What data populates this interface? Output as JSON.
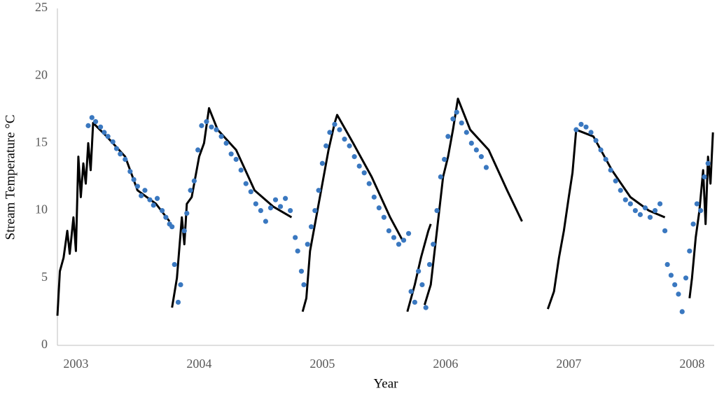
{
  "chart_data": {
    "type": "line",
    "x_label": "Year",
    "y_label": "Stream Temperature °C",
    "xlim": [
      2002.85,
      2008.18
    ],
    "xticks": [
      2003,
      2004,
      2005,
      2006,
      2007,
      2008
    ],
    "ylim": [
      0,
      25
    ],
    "yticks": [
      0,
      5,
      10,
      15,
      20,
      25
    ],
    "grid": false,
    "series": [
      {
        "type": "line",
        "color": "#000000",
        "x": [
          2002.85,
          2002.87,
          2002.9,
          2002.93,
          2002.95,
          2002.98,
          2003.0,
          2003.02,
          2003.04,
          2003.06,
          2003.08,
          2003.1,
          2003.12,
          2003.14,
          2003.25,
          2003.4,
          2003.5,
          2003.65,
          2003.76,
          null,
          2003.78,
          2003.82,
          2003.86,
          2003.88,
          2003.9,
          2003.94,
          2003.97,
          2004.0,
          2004.04,
          2004.08,
          2004.15,
          2004.3,
          2004.45,
          2004.6,
          2004.75,
          null,
          2004.84,
          2004.87,
          2004.9,
          2004.95,
          2005.0,
          2005.05,
          2005.1,
          2005.12,
          2005.25,
          2005.4,
          2005.55,
          2005.65,
          null,
          2005.69,
          2005.75,
          2005.8,
          2005.86,
          2005.88,
          null,
          2005.83,
          2005.88,
          2005.93,
          2005.98,
          2006.02,
          2006.06,
          2006.1,
          2006.2,
          2006.35,
          2006.5,
          2006.62,
          null,
          2006.83,
          2006.88,
          2006.92,
          2006.96,
          2007.0,
          2007.03,
          2007.06,
          2007.2,
          2007.35,
          2007.5,
          2007.65,
          2007.78,
          null,
          2007.98,
          2008.0,
          2008.03,
          2008.06,
          2008.09,
          2008.11,
          2008.13,
          2008.15,
          2008.17
        ],
        "values": [
          2.2,
          5.5,
          6.5,
          8.5,
          6.8,
          9.5,
          7,
          14,
          11,
          13.5,
          12,
          15,
          13,
          16.5,
          15.5,
          14,
          11.5,
          10.5,
          9.2,
          null,
          2.8,
          5,
          9.5,
          7.5,
          10.5,
          11,
          12.5,
          14,
          15,
          17.6,
          16,
          14.5,
          11.5,
          10.3,
          9.5,
          null,
          2.5,
          3.5,
          7,
          9.5,
          12,
          14.5,
          16.5,
          17.1,
          15,
          12.5,
          9.5,
          7.8,
          null,
          2.5,
          4.5,
          6.5,
          8.5,
          9,
          null,
          3,
          4.5,
          8.5,
          12.5,
          14,
          16,
          18.3,
          16,
          14.5,
          11.5,
          9.2,
          null,
          2.7,
          4,
          6.5,
          8.5,
          11,
          12.8,
          16,
          15.5,
          13,
          11,
          10,
          9.5,
          null,
          3.5,
          5,
          8,
          10,
          13,
          9,
          14,
          12,
          15.8
        ]
      },
      {
        "type": "scatter",
        "color": "#3a78c0",
        "x": [
          2003.1,
          2003.13,
          2003.16,
          2003.2,
          2003.23,
          2003.26,
          2003.3,
          2003.33,
          2003.36,
          2003.4,
          2003.44,
          2003.47,
          2003.5,
          2003.53,
          2003.56,
          2003.6,
          2003.63,
          2003.66,
          2003.7,
          2003.73,
          2003.76,
          2003.78,
          2003.8,
          2003.83,
          2003.85,
          2003.88,
          2003.9,
          2003.93,
          2003.96,
          2003.99,
          2004.02,
          2004.06,
          2004.1,
          2004.14,
          2004.18,
          2004.22,
          2004.26,
          2004.3,
          2004.34,
          2004.38,
          2004.42,
          2004.46,
          2004.5,
          2004.54,
          2004.58,
          2004.62,
          2004.66,
          2004.7,
          2004.74,
          2004.78,
          2004.8,
          2004.83,
          2004.85,
          2004.88,
          2004.91,
          2004.94,
          2004.97,
          2005.0,
          2005.03,
          2005.06,
          2005.1,
          2005.14,
          2005.18,
          2005.22,
          2005.26,
          2005.3,
          2005.34,
          2005.38,
          2005.42,
          2005.46,
          2005.5,
          2005.54,
          2005.58,
          2005.62,
          2005.66,
          2005.7,
          2005.72,
          2005.75,
          2005.78,
          2005.81,
          2005.84,
          2005.87,
          2005.9,
          2005.93,
          2005.96,
          2005.99,
          2006.02,
          2006.06,
          2006.09,
          2006.13,
          2006.17,
          2006.21,
          2006.25,
          2006.29,
          2006.33,
          2007.06,
          2007.1,
          2007.14,
          2007.18,
          2007.22,
          2007.26,
          2007.3,
          2007.34,
          2007.38,
          2007.42,
          2007.46,
          2007.5,
          2007.54,
          2007.58,
          2007.62,
          2007.66,
          2007.7,
          2007.74,
          2007.78,
          2007.8,
          2007.83,
          2007.86,
          2007.89,
          2007.92,
          2007.95,
          2007.98,
          2008.01,
          2008.04,
          2008.07,
          2008.1,
          2008.13
        ],
        "values": [
          16.3,
          16.9,
          16.6,
          16.2,
          15.8,
          15.5,
          15.1,
          14.6,
          14.2,
          13.8,
          12.9,
          12.3,
          11.8,
          11.1,
          11.5,
          10.8,
          10.4,
          10.9,
          10.0,
          9.5,
          9.0,
          8.8,
          6.0,
          3.2,
          4.5,
          8.5,
          9.8,
          11.5,
          12.2,
          14.5,
          16.3,
          16.6,
          16.2,
          16.0,
          15.5,
          15.0,
          14.2,
          13.8,
          13.0,
          12.0,
          11.4,
          10.5,
          10.0,
          9.2,
          10.2,
          10.8,
          10.3,
          10.9,
          10.0,
          8.0,
          7.0,
          5.5,
          4.5,
          7.5,
          8.8,
          10.0,
          11.5,
          13.5,
          14.8,
          15.8,
          16.4,
          16.0,
          15.3,
          14.8,
          14.0,
          13.3,
          12.8,
          12.0,
          11.0,
          10.2,
          9.5,
          8.5,
          8.0,
          7.5,
          7.8,
          8.3,
          4.0,
          3.2,
          5.5,
          4.5,
          2.8,
          6.0,
          7.5,
          10.0,
          12.5,
          13.8,
          15.5,
          16.8,
          17.3,
          16.5,
          15.8,
          15.0,
          14.5,
          14.0,
          13.2,
          16.0,
          16.4,
          16.2,
          15.8,
          15.2,
          14.5,
          13.8,
          13.0,
          12.2,
          11.5,
          10.8,
          10.5,
          10.0,
          9.7,
          10.2,
          9.5,
          10.0,
          10.5,
          8.5,
          6.0,
          5.2,
          4.5,
          3.8,
          2.5,
          5.0,
          7.0,
          9.0,
          10.5,
          10.0,
          12.5,
          13.5
        ]
      }
    ]
  }
}
